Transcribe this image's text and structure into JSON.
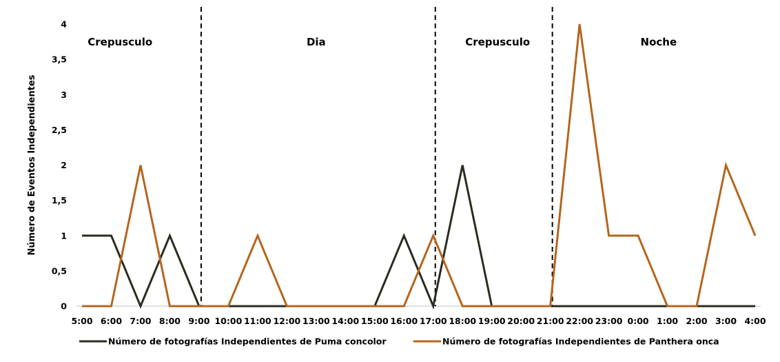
{
  "chart_data": {
    "type": "line",
    "title": "",
    "xlabel": "",
    "ylabel": "Número de Eventos Independientes",
    "ylim": [
      0,
      4
    ],
    "yticks": [
      "0",
      "0,5",
      "1",
      "1,5",
      "2",
      "2,5",
      "3",
      "3,5",
      "4"
    ],
    "categories": [
      "5:00",
      "6:00",
      "7:00",
      "8:00",
      "9:00",
      "10:00",
      "11:00",
      "12:00",
      "13:00",
      "14:00",
      "15:00",
      "16:00",
      "17:00",
      "18:00",
      "19:00",
      "20:00",
      "21:00",
      "22:00",
      "23:00",
      "0:00",
      "1:00",
      "2:00",
      "3:00",
      "4:00"
    ],
    "series": [
      {
        "name": "Número de fotografías Independientes de Puma concolor",
        "color": "#2b2b20",
        "values": [
          1,
          1,
          0,
          1,
          0,
          0,
          0,
          0,
          0,
          0,
          0,
          1,
          0,
          2,
          0,
          0,
          0,
          0,
          0,
          0,
          0,
          0,
          0,
          0
        ]
      },
      {
        "name": "Número de fotografías Independientes de Panthera onca",
        "color": "#b5651d",
        "values": [
          0,
          0,
          2,
          0,
          0,
          0,
          1,
          0,
          0,
          0,
          0,
          0,
          1,
          0,
          0,
          0,
          0,
          4,
          1,
          1,
          0,
          0,
          2,
          1
        ]
      }
    ],
    "dividers": [
      4,
      12,
      16
    ],
    "periods": [
      {
        "label": "Crepusculo",
        "center": 1.3
      },
      {
        "label": "Dia",
        "center": 8
      },
      {
        "label": "Crepusculo",
        "center": 14.2
      },
      {
        "label": "Noche",
        "center": 19.7
      }
    ],
    "legend": "bottom",
    "grid": false
  }
}
